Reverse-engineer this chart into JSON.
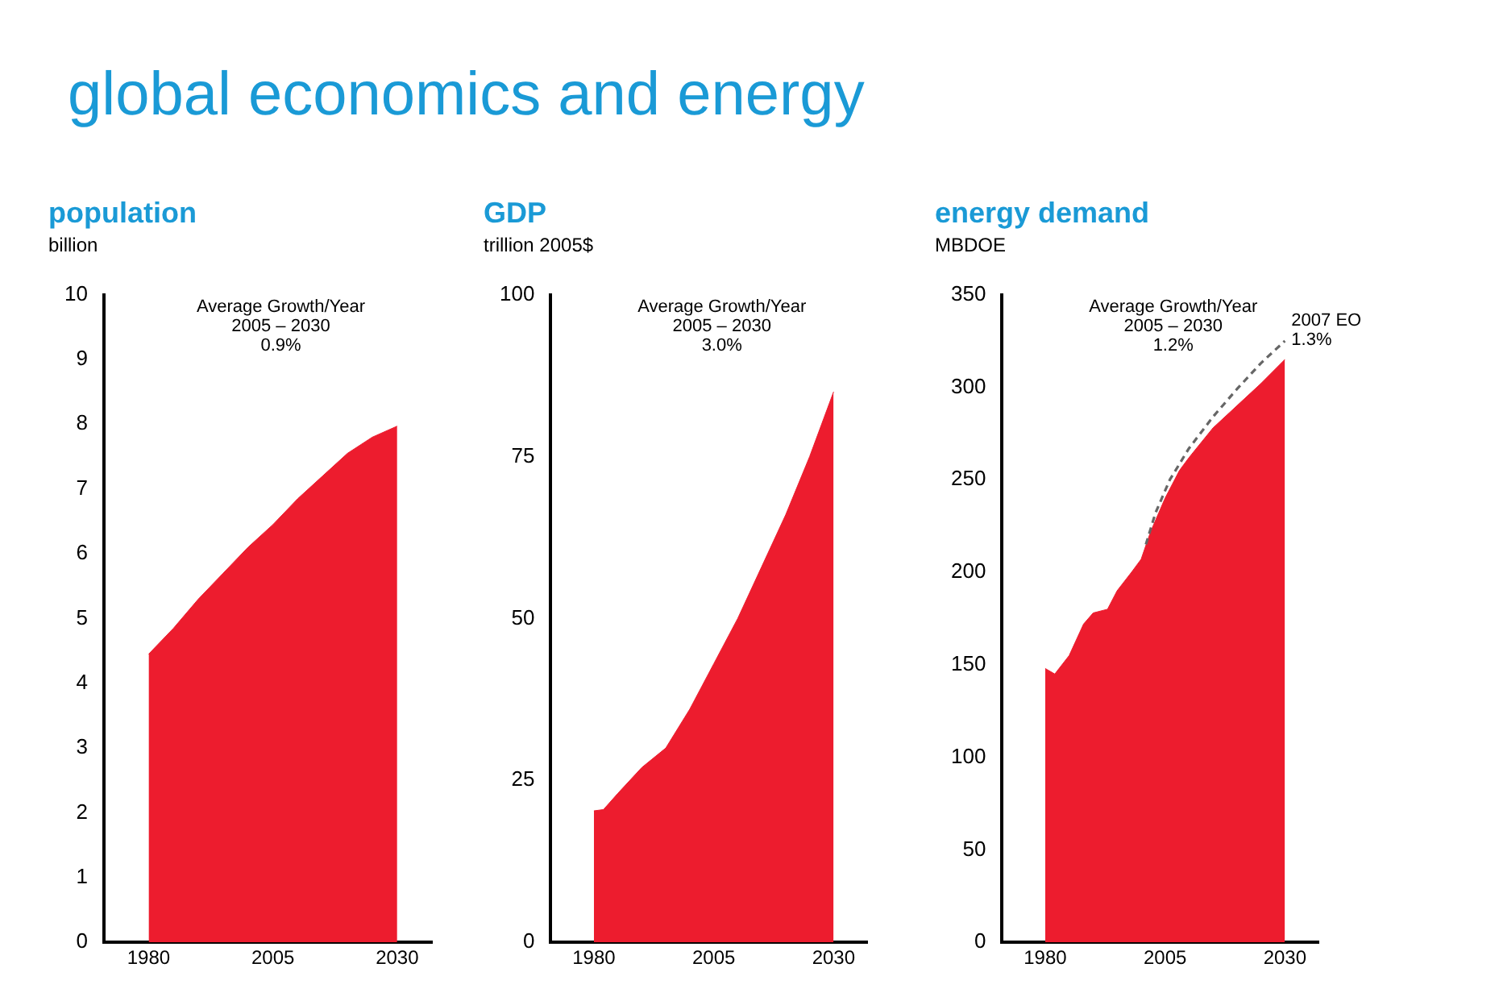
{
  "chart_data": [
    {
      "type": "area",
      "title": "population",
      "ylabel": "billion",
      "annotations": [
        "global economics and energy",
        "Average Growth/Year\n2005 – 2030\n0.9%"
      ],
      "x": [
        1980,
        1985,
        1990,
        1995,
        2000,
        2005,
        2010,
        2015,
        2020,
        2025,
        2030
      ],
      "xlim": [
        1971,
        2037
      ],
      "xticks": [
        1980,
        2005,
        2030
      ],
      "ylim": [
        0,
        10
      ],
      "yticks": [
        0,
        1,
        2,
        3,
        4,
        5,
        6,
        7,
        8,
        9,
        10
      ],
      "grid": false,
      "legend": false,
      "series": [
        {
          "color": "#ed1c2e",
          "values": [
            4.45,
            4.85,
            5.3,
            5.7,
            6.1,
            6.45,
            6.85,
            7.2,
            7.55,
            7.8,
            7.97
          ]
        }
      ]
    },
    {
      "type": "area",
      "title": "GDP",
      "ylabel": "trillion 2005$",
      "annotations": [
        "Average Growth/Year\n2005 – 2030\n3.0%"
      ],
      "x": [
        1980,
        1982,
        1985,
        1990,
        1995,
        2000,
        2005,
        2010,
        2015,
        2020,
        2025,
        2030
      ],
      "xlim": [
        1971,
        2037
      ],
      "xticks": [
        1980,
        2005,
        2030
      ],
      "ylim": [
        0,
        100
      ],
      "yticks": [
        0,
        25,
        50,
        75,
        100
      ],
      "grid": false,
      "legend": false,
      "series": [
        {
          "color": "#ed1c2e",
          "values": [
            20.3,
            20.5,
            23,
            27,
            30,
            36,
            43,
            50,
            58,
            66,
            75,
            85
          ]
        }
      ]
    },
    {
      "type": "area",
      "title": "energy demand",
      "ylabel": "MBDOE",
      "annotations": [
        "Average Growth/Year\n2005 – 2030\n1.2%",
        {
          "text": "2007 EO\n1.3%",
          "x": 2030,
          "y": 325
        }
      ],
      "x": [
        1980,
        1982,
        1985,
        1988,
        1990,
        1993,
        1995,
        1998,
        2000,
        2002,
        2005,
        2008,
        2010,
        2015,
        2020,
        2025,
        2030
      ],
      "xlim": [
        1971,
        2037
      ],
      "xticks": [
        1980,
        2005,
        2030
      ],
      "ylim": [
        0,
        350
      ],
      "yticks": [
        0,
        50,
        100,
        150,
        200,
        250,
        300,
        350
      ],
      "grid": false,
      "legend": false,
      "series": [
        {
          "color": "#ed1c2e",
          "values": [
            148,
            145,
            155,
            172,
            178,
            180,
            190,
            200,
            207,
            222,
            240,
            255,
            262,
            278,
            290,
            302,
            315
          ]
        },
        {
          "type": "line",
          "line_style": "dashed",
          "color": "#666666",
          "x": [
            2001,
            2003,
            2006,
            2010,
            2015,
            2020,
            2025,
            2030
          ],
          "values": [
            215,
            232,
            250,
            267,
            284,
            299,
            313,
            325
          ]
        }
      ]
    }
  ]
}
